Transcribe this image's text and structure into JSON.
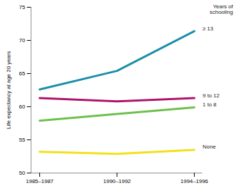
{
  "chart_data": {
    "type": "line",
    "y_label": "Life expectancy at age 20 years",
    "legend_title": "Years of schooling",
    "categories": [
      "1985–1987",
      "1990–1992",
      "1994–1996"
    ],
    "series": [
      {
        "name": "≥ 13",
        "color": "#1a8fa8",
        "values": [
          62.6,
          65.4,
          71.4
        ]
      },
      {
        "name": "9 to 12",
        "color": "#b0126b",
        "values": [
          61.3,
          60.8,
          61.3
        ]
      },
      {
        "name": "1 to 8",
        "color": "#6cc04a",
        "values": [
          57.9,
          58.9,
          59.9
        ]
      },
      {
        "name": "None",
        "color": "#f2e01c",
        "values": [
          53.2,
          52.9,
          53.5
        ]
      }
    ],
    "ylim": [
      50,
      75
    ],
    "yticks": [
      50,
      55,
      60,
      65,
      70,
      75
    ],
    "grid": false
  }
}
